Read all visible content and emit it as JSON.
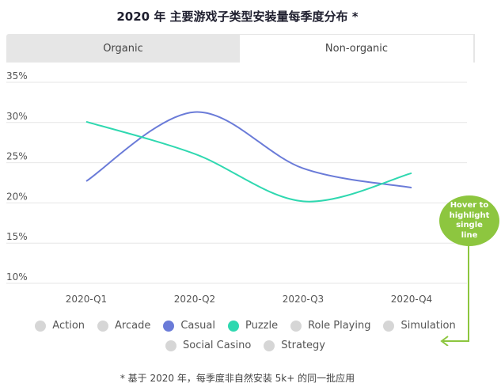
{
  "header": {
    "title": "2020 年 主要游戏子类型安装量每季度分布 *"
  },
  "tabs": [
    {
      "label": "Organic",
      "active": false
    },
    {
      "label": "Non-organic",
      "active": true
    }
  ],
  "chart_data": {
    "type": "line",
    "categories": [
      "2020-Q1",
      "2020-Q2",
      "2020-Q3",
      "2020-Q4"
    ],
    "ylim": [
      10,
      35
    ],
    "yticks": [
      "35%",
      "30%",
      "25%",
      "20%",
      "15%",
      "10%"
    ],
    "grid": true,
    "legend_position": "bottom",
    "series": [
      {
        "name": "Casual",
        "color": "#6a7bd8",
        "values": [
          22.7,
          31.3,
          24.3,
          21.9
        ]
      },
      {
        "name": "Puzzle",
        "color": "#2fd8b0",
        "values": [
          30.1,
          26.1,
          20.2,
          23.7
        ]
      }
    ]
  },
  "legend": [
    {
      "label": "Action",
      "color": "#d6d6d6"
    },
    {
      "label": "Arcade",
      "color": "#d6d6d6"
    },
    {
      "label": "Casual",
      "color": "#6a7bd8"
    },
    {
      "label": "Puzzle",
      "color": "#2fd8b0"
    },
    {
      "label": "Role Playing",
      "color": "#d6d6d6"
    },
    {
      "label": "Simulation",
      "color": "#d6d6d6"
    },
    {
      "label": "Social Casino",
      "color": "#d6d6d6"
    },
    {
      "label": "Strategy",
      "color": "#d6d6d6"
    }
  ],
  "hover_hint": {
    "text": "Hover to highlight single line",
    "color": "#8dc63f"
  },
  "footnote": "* 基于 2020 年，每季度非自然安装 5k+ 的同一批应用"
}
